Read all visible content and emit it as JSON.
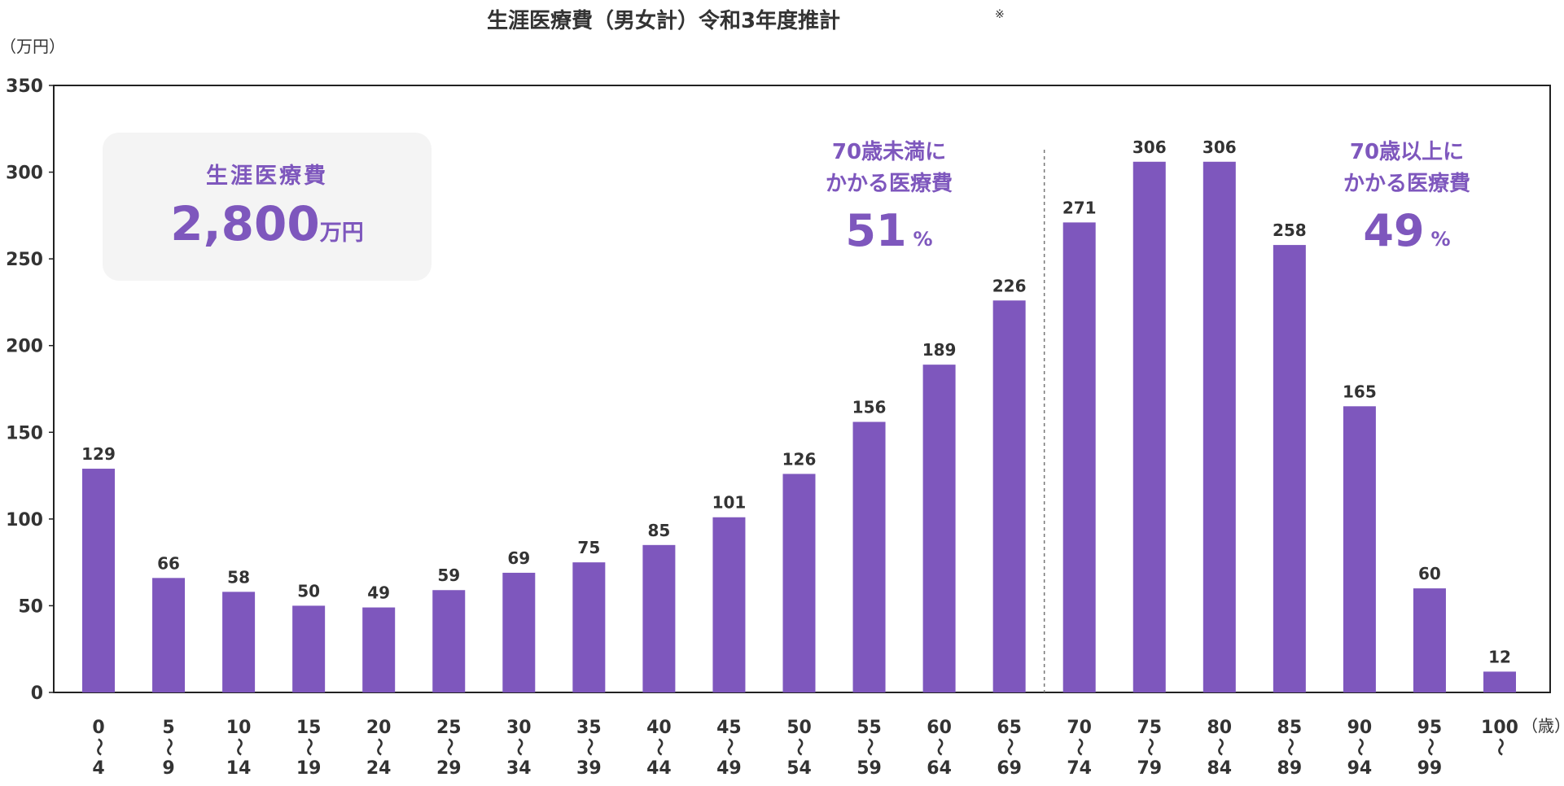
{
  "chart_data": {
    "type": "bar",
    "title": "生涯医療費（男女計）令和3年度推計",
    "title_mark": "※",
    "ylabel": "（万円）",
    "xlabel": "（歳）",
    "ylim": [
      0,
      350
    ],
    "yticks": [
      "0",
      "50",
      "100",
      "150",
      "200",
      "250",
      "300",
      "350"
    ],
    "categories": [
      {
        "start": "0",
        "end": "4"
      },
      {
        "start": "5",
        "end": "9"
      },
      {
        "start": "10",
        "end": "14"
      },
      {
        "start": "15",
        "end": "19"
      },
      {
        "start": "20",
        "end": "24"
      },
      {
        "start": "25",
        "end": "29"
      },
      {
        "start": "30",
        "end": "34"
      },
      {
        "start": "35",
        "end": "39"
      },
      {
        "start": "40",
        "end": "44"
      },
      {
        "start": "45",
        "end": "49"
      },
      {
        "start": "50",
        "end": "54"
      },
      {
        "start": "55",
        "end": "59"
      },
      {
        "start": "60",
        "end": "64"
      },
      {
        "start": "65",
        "end": "69"
      },
      {
        "start": "70",
        "end": "74"
      },
      {
        "start": "75",
        "end": "79"
      },
      {
        "start": "80",
        "end": "84"
      },
      {
        "start": "85",
        "end": "89"
      },
      {
        "start": "90",
        "end": "94"
      },
      {
        "start": "95",
        "end": "99"
      },
      {
        "start": "100",
        "end": ""
      }
    ],
    "range_mark": "〜",
    "values": [
      129,
      66,
      58,
      50,
      49,
      59,
      69,
      75,
      85,
      101,
      126,
      156,
      189,
      226,
      271,
      306,
      306,
      258,
      165,
      60,
      12
    ],
    "bar_color": "#7e57bd",
    "accent_color": "#7e57bd",
    "grid": false,
    "divider_between": [
      "65",
      "70"
    ]
  },
  "summary_box": {
    "label": "生涯医療費",
    "value": "2,800",
    "unit": "万円",
    "background": "#f4f4f4"
  },
  "annotation_under70": {
    "line1": "70歳未満に",
    "line2": "かかる医療費",
    "value": "51",
    "unit": "%"
  },
  "annotation_over70": {
    "line1": "70歳以上に",
    "line2": "かかる医療費",
    "value": "49",
    "unit": "%"
  }
}
